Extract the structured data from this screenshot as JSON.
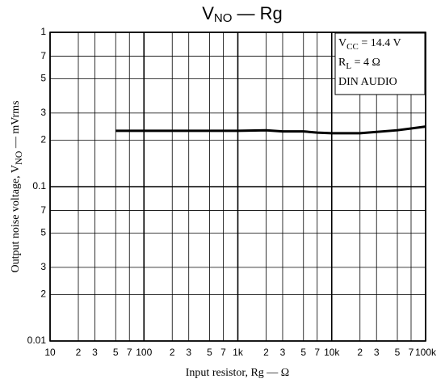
{
  "chart_data": {
    "type": "line",
    "title": [
      "V",
      "NO",
      " — Rg"
    ],
    "xlabel": "Input resistor, Rg — Ω",
    "ylabel": [
      "Output noise voltage, V",
      "NO",
      " — mVrms"
    ],
    "annotations": [
      [
        "V",
        "CC",
        " = 14.4 V"
      ],
      [
        "R",
        "L",
        " = 4 Ω"
      ],
      [
        "DIN AUDIO"
      ]
    ],
    "xscale": "log",
    "yscale": "log",
    "grid": true,
    "xlim": [
      10,
      100000
    ],
    "ylim": [
      0.01,
      1
    ],
    "xticks": [
      10,
      {
        "value": 20,
        "label": "2"
      },
      {
        "value": 30,
        "label": "3"
      },
      {
        "value": 50,
        "label": "5"
      },
      {
        "value": 70,
        "label": "7"
      },
      100,
      {
        "value": 200,
        "label": "2"
      },
      {
        "value": 300,
        "label": "3"
      },
      {
        "value": 500,
        "label": "5"
      },
      {
        "value": 700,
        "label": "7"
      },
      {
        "value": 1000,
        "label": "1k"
      },
      {
        "value": 2000,
        "label": "2"
      },
      {
        "value": 3000,
        "label": "3"
      },
      {
        "value": 5000,
        "label": "5"
      },
      {
        "value": 7000,
        "label": "7"
      },
      {
        "value": 10000,
        "label": "10k"
      },
      {
        "value": 20000,
        "label": "2"
      },
      {
        "value": 30000,
        "label": "3"
      },
      {
        "value": 50000,
        "label": "5"
      },
      {
        "value": 70000,
        "label": "7"
      },
      {
        "value": 100000,
        "label": "100k"
      }
    ],
    "yticks": [
      0.01,
      {
        "value": 0.02,
        "label": "2"
      },
      {
        "value": 0.03,
        "label": "3"
      },
      {
        "value": 0.05,
        "label": "5"
      },
      {
        "value": 0.07,
        "label": "7"
      },
      0.1,
      {
        "value": 0.2,
        "label": "2"
      },
      {
        "value": 0.3,
        "label": "3"
      },
      {
        "value": 0.5,
        "label": "5"
      },
      {
        "value": 0.7,
        "label": "7"
      },
      1
    ],
    "series": [
      {
        "color": "#000000",
        "x": [
          50,
          100,
          200,
          500,
          1000,
          2000,
          3000,
          5000,
          7000,
          10000,
          20000,
          50000,
          100000
        ],
        "values": [
          0.23,
          0.23,
          0.23,
          0.23,
          0.23,
          0.232,
          0.228,
          0.228,
          0.224,
          0.222,
          0.222,
          0.232,
          0.245
        ]
      }
    ]
  }
}
